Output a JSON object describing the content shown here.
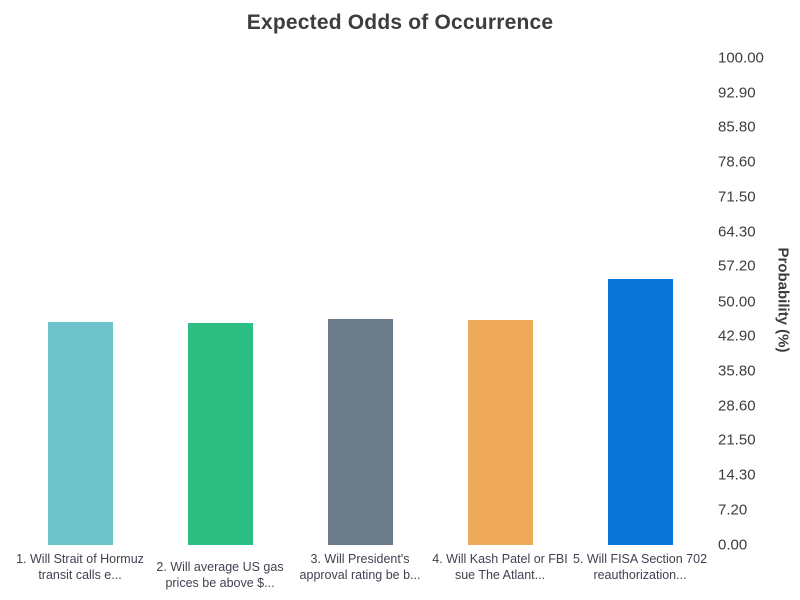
{
  "chart_data": {
    "type": "bar",
    "title": "Expected Odds of Occurrence",
    "xlabel": "",
    "ylabel": "Probability (%)",
    "ylim": [
      0,
      100
    ],
    "grid": false,
    "legend_position": "none",
    "yaxis_side": "right",
    "background": "#ffffff",
    "title_color": "#3d3d3d",
    "tick_color": "#3d3d3d",
    "categories": [
      "1. Will Strait of Hormuz transit calls e...",
      "2. Will average US gas prices be above $...",
      "3. Will President's approval rating be b...",
      "4. Will Kash Patel or FBI sue The Atlant...",
      "5. Will FISA Section 702 reauthorization..."
    ],
    "category_lines": [
      [
        "1. Will Strait of Hormuz",
        "transit calls e..."
      ],
      [
        "2. Will average US gas",
        "prices be above $..."
      ],
      [
        "3. Will President's",
        "approval rating be b..."
      ],
      [
        "4. Will Kash Patel or FBI",
        "sue The Atlant..."
      ],
      [
        "5. Will FISA Section 702",
        "reauthorization..."
      ]
    ],
    "values": [
      45.7,
      45.5,
      46.4,
      46.2,
      54.7
    ],
    "bar_colors": [
      "#6FC3CA",
      "#2DBE83",
      "#6C7B89",
      "#EFA95A",
      "#0B75D9"
    ],
    "ytick_labels": [
      "100.00",
      "92.90",
      "85.80",
      "78.60",
      "71.50",
      "64.30",
      "57.20",
      "50.00",
      "42.90",
      "35.80",
      "28.60",
      "21.50",
      "14.30",
      "7.20",
      "0.00"
    ],
    "ytick_values": [
      100,
      92.9,
      85.8,
      78.6,
      71.5,
      64.3,
      57.2,
      50,
      42.9,
      35.8,
      28.6,
      21.5,
      14.3,
      7.2,
      0
    ]
  }
}
